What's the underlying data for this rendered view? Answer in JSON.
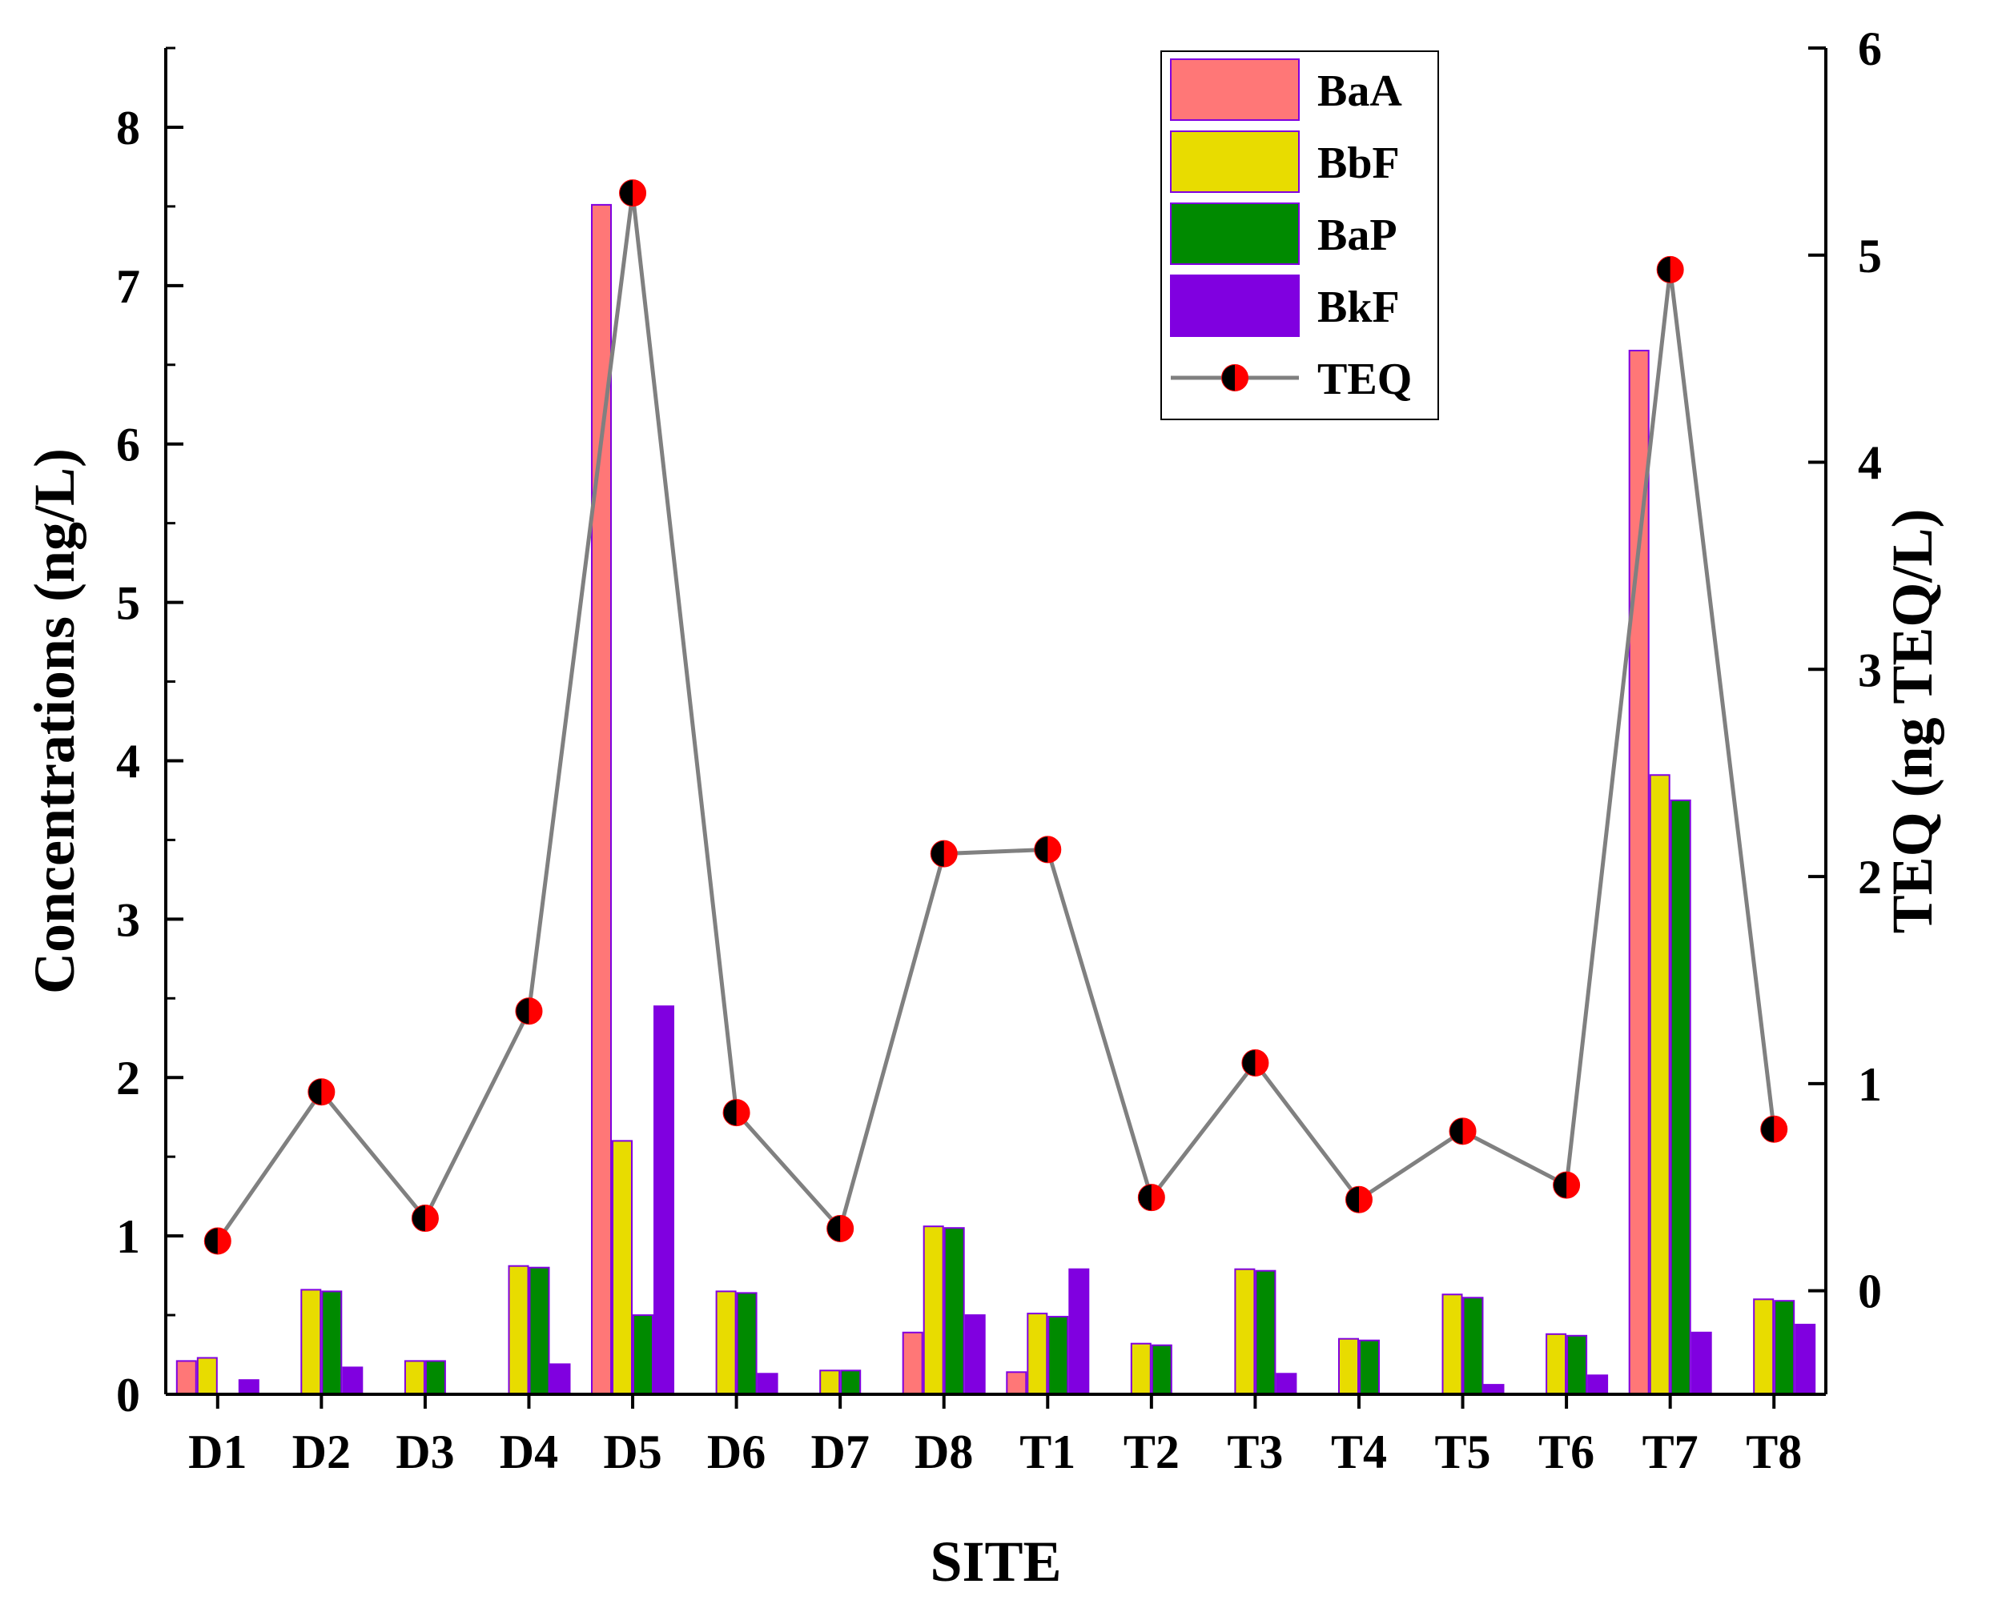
{
  "chart_data": {
    "type": "bar",
    "title": "",
    "xlabel": "SITE",
    "ylabel": "Concentrations (ng/L)",
    "y2label": "TEQ (ng TEQ/L)",
    "ylim": [
      0,
      8.5
    ],
    "y2lim": [
      -0.5,
      6
    ],
    "yticks": [
      "0",
      "1",
      "2",
      "3",
      "4",
      "5",
      "6",
      "7",
      "8"
    ],
    "y2ticks": [
      "0",
      "1",
      "2",
      "3",
      "4",
      "5",
      "6"
    ],
    "categories": [
      "D1",
      "D2",
      "D3",
      "D4",
      "D5",
      "D6",
      "D7",
      "D8",
      "T1",
      "T2",
      "T3",
      "T4",
      "T5",
      "T6",
      "T7",
      "T8"
    ],
    "series": [
      {
        "name": "BaA",
        "color": "#FF7777",
        "values": [
          0.21,
          0,
          0,
          0,
          7.51,
          0,
          0,
          0.39,
          0.14,
          0,
          0,
          0,
          0,
          0,
          6.59,
          0
        ]
      },
      {
        "name": "BbF",
        "color": "#E8DC00",
        "values": [
          0.23,
          0.66,
          0.21,
          0.81,
          1.6,
          0.65,
          0.15,
          1.06,
          0.51,
          0.32,
          0.79,
          0.35,
          0.63,
          0.38,
          3.91,
          0.6
        ]
      },
      {
        "name": "BaP",
        "color": "#008A00",
        "values": [
          0,
          0.65,
          0.21,
          0.8,
          0.5,
          0.64,
          0.15,
          1.05,
          0.49,
          0.31,
          0.78,
          0.34,
          0.61,
          0.37,
          3.75,
          0.59
        ]
      },
      {
        "name": "BkF",
        "color": "#8000E0",
        "values": [
          0.09,
          0.17,
          0,
          0.19,
          2.45,
          0.13,
          0,
          0.5,
          0.79,
          0,
          0.13,
          0,
          0.06,
          0.12,
          0.39,
          0.44
        ]
      }
    ],
    "line_series": {
      "name": "TEQ",
      "axis": "right",
      "line_color": "#808080",
      "marker_color": "#FF0000",
      "values": [
        0.24,
        0.96,
        0.35,
        1.35,
        5.3,
        0.86,
        0.3,
        2.11,
        2.13,
        0.45,
        1.1,
        0.44,
        0.77,
        0.51,
        4.93,
        0.78
      ]
    },
    "legend": {
      "position": "top-center",
      "entries": [
        "BaA",
        "BbF",
        "BaP",
        "BkF",
        "TEQ"
      ]
    },
    "grid": false
  }
}
